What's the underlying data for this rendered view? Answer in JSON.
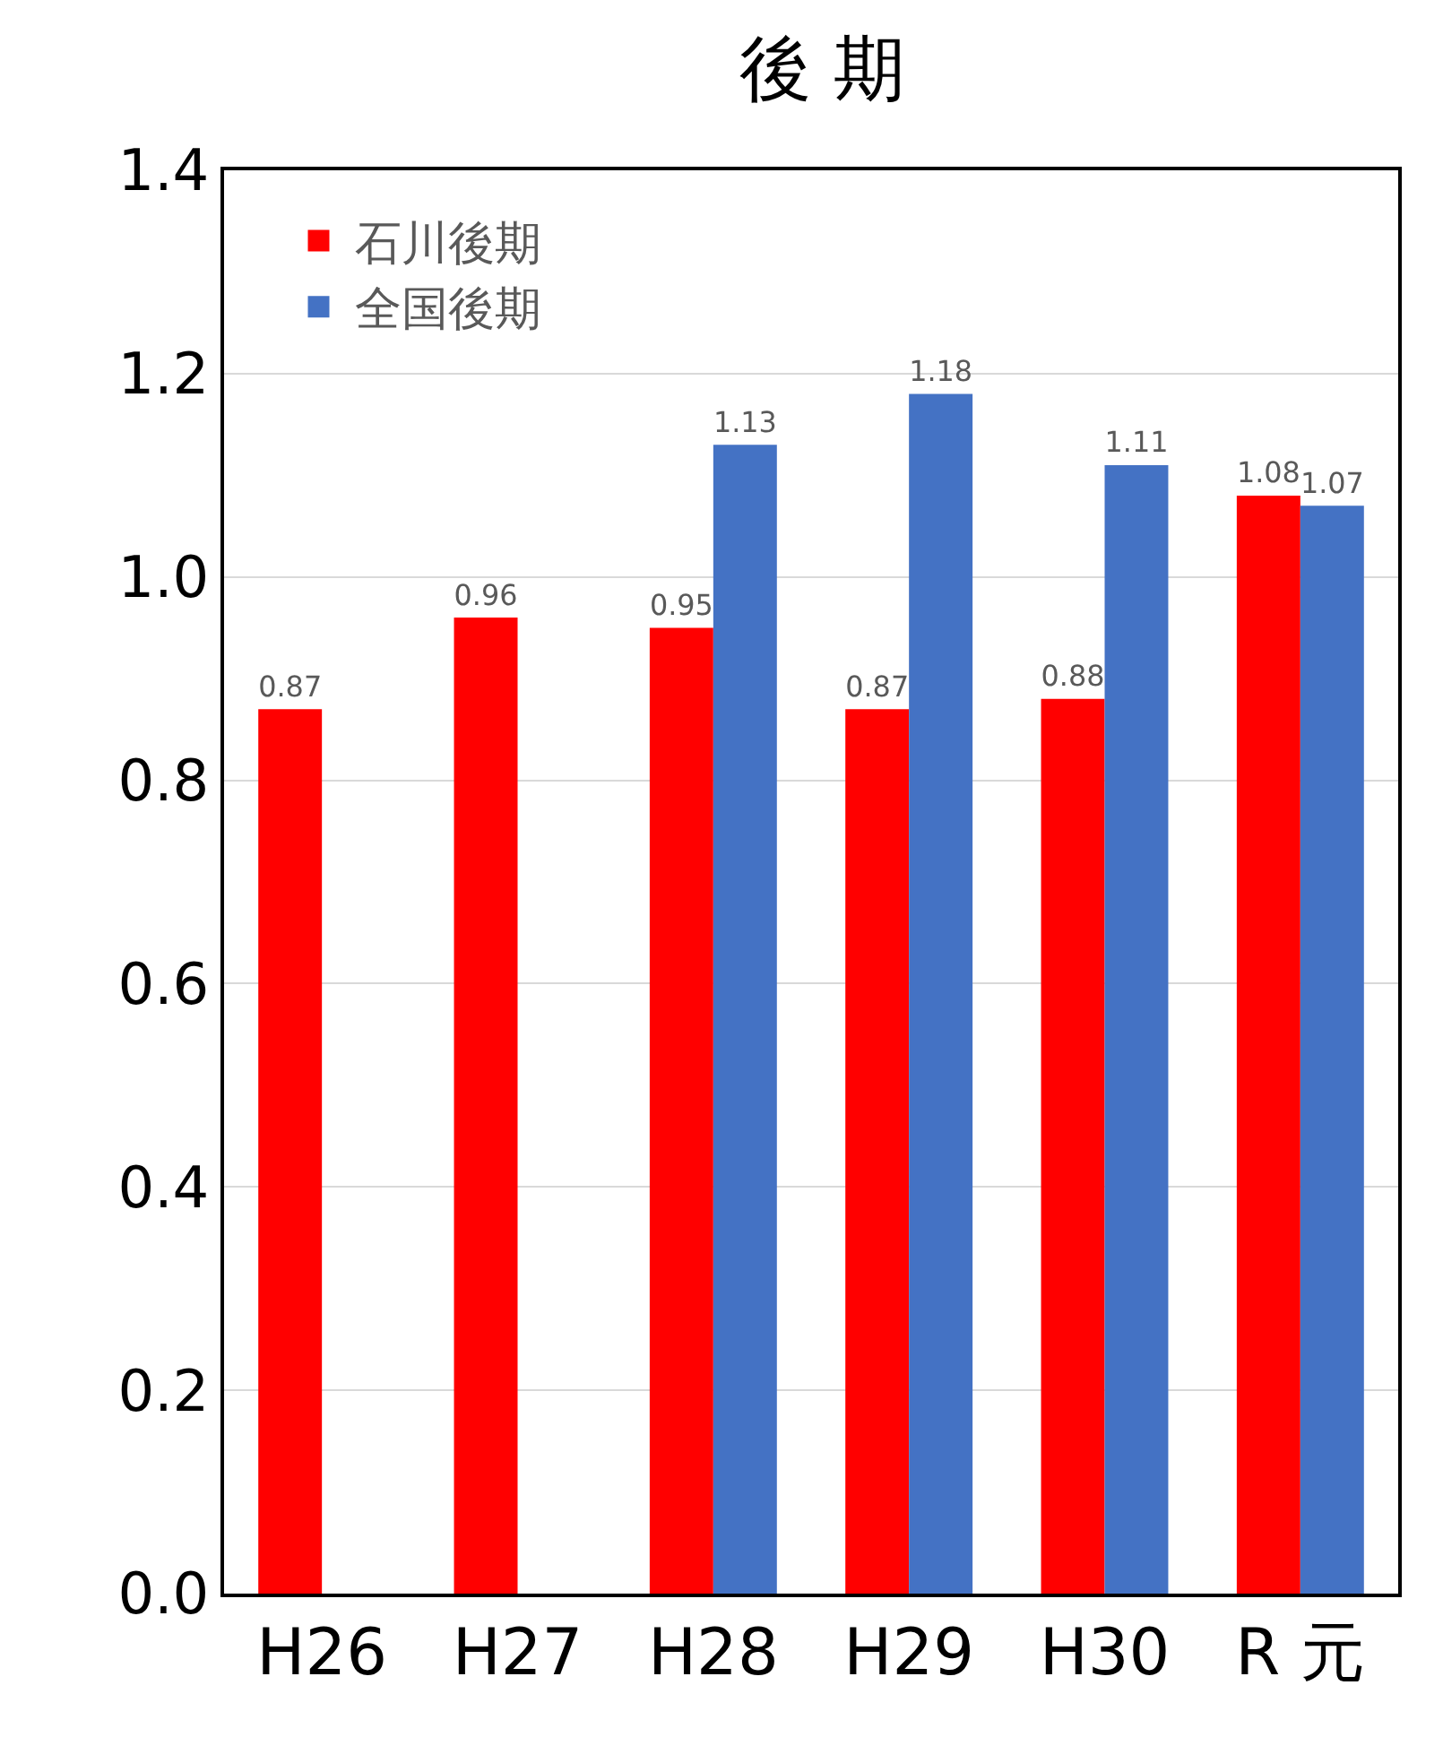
{
  "chart_data": {
    "type": "bar",
    "title": "後 期",
    "categories": [
      "H26",
      "H27",
      "H28",
      "H29",
      "H30",
      "R 元"
    ],
    "series": [
      {
        "name": "石川後期",
        "color": "#ff0000",
        "values": [
          0.87,
          0.96,
          0.95,
          0.87,
          0.88,
          1.08
        ]
      },
      {
        "name": "全国後期",
        "color": "#4472c4",
        "values": [
          null,
          null,
          1.13,
          1.18,
          1.11,
          1.07
        ]
      }
    ],
    "ylim": [
      0,
      1.4
    ],
    "yticks": [
      {
        "value": 0,
        "label": "0.0"
      },
      {
        "value": 0.2,
        "label": "0.2"
      },
      {
        "value": 0.4,
        "label": "0.4"
      },
      {
        "value": 0.6,
        "label": "0.6"
      },
      {
        "value": 0.8,
        "label": "0.8"
      },
      {
        "value": 1,
        "label": "1.0"
      },
      {
        "value": 1.2,
        "label": "1.2"
      },
      {
        "value": 1.4,
        "label": "1.4"
      }
    ],
    "grid": true,
    "legend": "top left",
    "data_labels": true
  }
}
